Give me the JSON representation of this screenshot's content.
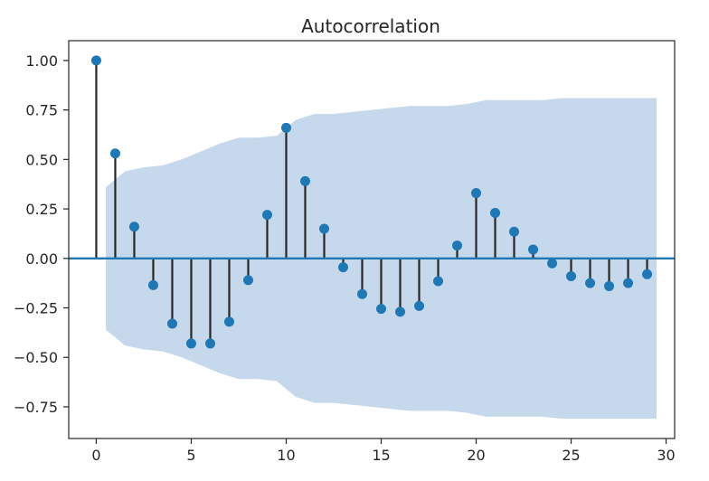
{
  "chart_data": {
    "type": "stem",
    "title": "Autocorrelation",
    "xlabel": "",
    "ylabel": "",
    "xlim": [
      -1.45,
      30.45
    ],
    "ylim": [
      -0.91,
      1.1
    ],
    "x_ticks": [
      0,
      5,
      10,
      15,
      20,
      25,
      30
    ],
    "y_ticks": [
      1.0,
      0.75,
      0.5,
      0.25,
      0.0,
      -0.25,
      -0.5,
      -0.75
    ],
    "x_tick_labels": [
      "0",
      "5",
      "10",
      "15",
      "20",
      "25",
      "30"
    ],
    "y_tick_labels": [
      "1.00",
      "0.75",
      "0.50",
      "0.25",
      "0.00",
      "−0.25",
      "−0.50",
      "−0.75"
    ],
    "grid": false,
    "colors": {
      "marker": "#1f77b4",
      "stem": "#262626",
      "zero_line": "#1f77b4",
      "confidence_band": "#c6d9ec"
    },
    "lags": [
      0,
      1,
      2,
      3,
      4,
      5,
      6,
      7,
      8,
      9,
      10,
      11,
      12,
      13,
      14,
      15,
      16,
      17,
      18,
      19,
      20,
      21,
      22,
      23,
      24,
      25,
      26,
      27,
      28,
      29
    ],
    "values": [
      1.0,
      0.53,
      0.16,
      -0.135,
      -0.33,
      -0.43,
      -0.43,
      -0.32,
      -0.11,
      0.22,
      0.66,
      0.39,
      0.15,
      -0.045,
      -0.18,
      -0.255,
      -0.27,
      -0.24,
      -0.115,
      0.065,
      0.33,
      0.23,
      0.135,
      0.045,
      -0.025,
      -0.09,
      -0.125,
      -0.14,
      -0.125,
      -0.08
    ],
    "confidence_band": {
      "x_start": 0.5,
      "x_end": 29.5,
      "upper": [
        0.36,
        0.44,
        0.46,
        0.47,
        0.5,
        0.54,
        0.58,
        0.61,
        0.61,
        0.62,
        0.7,
        0.73,
        0.73,
        0.74,
        0.75,
        0.76,
        0.77,
        0.77,
        0.77,
        0.78,
        0.8,
        0.8,
        0.8,
        0.8,
        0.81,
        0.81,
        0.81,
        0.81,
        0.81,
        0.81
      ]
    }
  }
}
